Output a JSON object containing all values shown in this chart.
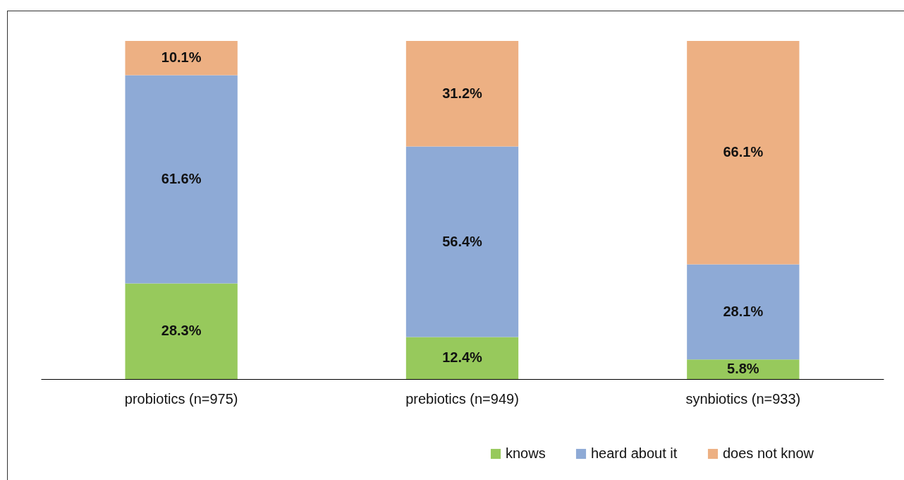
{
  "chart_data": {
    "type": "bar",
    "stacked": true,
    "categories": [
      "probiotics (n=975)",
      "prebiotics (n=949)",
      "synbiotics (n=933)"
    ],
    "series": [
      {
        "name": "knows",
        "color": "#97c95c",
        "values": [
          28.3,
          12.4,
          5.8
        ],
        "value_labels": [
          "28.3%",
          "12.4%",
          "5.8%"
        ]
      },
      {
        "name": "heard about it",
        "color": "#8eaad6",
        "values": [
          61.6,
          56.4,
          28.1
        ],
        "value_labels": [
          "61.6%",
          "56.4%",
          "28.1%"
        ]
      },
      {
        "name": "does not know",
        "color": "#edb083",
        "values": [
          10.1,
          31.2,
          66.1
        ],
        "value_labels": [
          "10.1%",
          "31.2%",
          "66.1%"
        ]
      }
    ],
    "legend": "bottom right",
    "grid": false
  }
}
